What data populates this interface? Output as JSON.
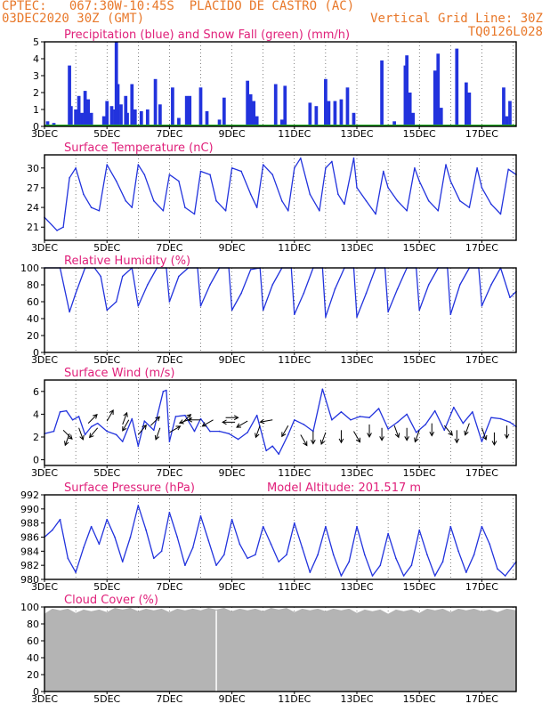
{
  "header": {
    "line1": "CPTEC:   067:30W-10:45S  PLACIDO DE CASTRO (AC)",
    "line2": "03DEC2020 30Z (GMT)",
    "vgrid": "Vertical Grid Line: 30Z",
    "code": "TQ0126L028"
  },
  "colors": {
    "header": "#e8782a",
    "title": "#e0207a",
    "line": "#2233dd",
    "snow": "#22aa22",
    "cloud": "#b4b4b4",
    "arrow": "#000000"
  },
  "x_ticks": [
    "3DEC",
    "5DEC",
    "7DEC",
    "9DEC",
    "11DEC",
    "13DEC",
    "15DEC",
    "17DEC"
  ],
  "x_range_days": [
    3,
    18.1
  ],
  "chart_data": [
    {
      "id": "precip",
      "type": "bar",
      "title": "Precipitation (blue) and Snow Fall (green) (mm/h)",
      "ylim": [
        0,
        5
      ],
      "yticks": [
        0,
        1,
        2,
        3,
        4,
        5
      ],
      "series": [
        {
          "name": "Precipitation",
          "x": [
            3.1,
            3.3,
            3.8,
            3.85,
            4.0,
            4.1,
            4.2,
            4.3,
            4.4,
            4.5,
            4.9,
            5.0,
            5.15,
            5.25,
            5.3,
            5.35,
            5.45,
            5.6,
            5.65,
            5.8,
            5.9,
            6.1,
            6.3,
            6.55,
            6.7,
            7.1,
            7.3,
            7.55,
            7.6,
            7.65,
            8.0,
            8.2,
            8.6,
            8.75,
            9.5,
            9.6,
            9.7,
            9.8,
            10.4,
            10.6,
            10.7,
            11.5,
            11.7,
            12.0,
            12.1,
            12.3,
            12.5,
            12.7,
            12.9,
            13.8,
            14.2,
            14.55,
            14.6,
            14.7,
            14.8,
            15.5,
            15.6,
            15.7,
            16.2,
            16.5,
            16.6,
            17.7,
            17.8,
            17.9
          ],
          "values": [
            0.3,
            0.2,
            3.6,
            1.2,
            1.0,
            1.8,
            0.8,
            2.1,
            1.6,
            0.8,
            0.6,
            1.5,
            1.2,
            1.0,
            5.0,
            2.5,
            1.3,
            1.8,
            0.8,
            2.5,
            1.0,
            0.9,
            1.0,
            2.8,
            1.3,
            2.3,
            0.5,
            1.8,
            1.4,
            1.8,
            2.3,
            0.9,
            0.4,
            1.7,
            2.7,
            1.9,
            1.5,
            0.6,
            2.5,
            0.4,
            2.4,
            1.4,
            1.2,
            2.8,
            1.5,
            1.5,
            1.6,
            2.3,
            0.8,
            3.9,
            0.3,
            3.6,
            4.2,
            2.0,
            0.8,
            3.3,
            4.3,
            1.1,
            4.6,
            2.6,
            2.0,
            2.3,
            0.6,
            1.5
          ]
        },
        {
          "name": "Snow Fall",
          "x": [],
          "values": []
        }
      ]
    },
    {
      "id": "temp",
      "type": "line",
      "title": "Surface Temperature (nC)",
      "ylim": [
        19,
        32
      ],
      "yticks": [
        21,
        24,
        27,
        30
      ],
      "x": [
        3.0,
        3.4,
        3.6,
        3.8,
        4.0,
        4.25,
        4.5,
        4.75,
        5.0,
        5.3,
        5.6,
        5.8,
        6.0,
        6.2,
        6.5,
        6.8,
        7.0,
        7.3,
        7.5,
        7.8,
        8.0,
        8.3,
        8.5,
        8.8,
        9.0,
        9.3,
        9.6,
        9.8,
        10.0,
        10.3,
        10.6,
        10.8,
        11.0,
        11.2,
        11.5,
        11.8,
        12.0,
        12.2,
        12.4,
        12.6,
        12.9,
        13.0,
        13.3,
        13.6,
        13.85,
        14.0,
        14.3,
        14.6,
        14.85,
        15.0,
        15.3,
        15.6,
        15.85,
        16.0,
        16.3,
        16.6,
        16.85,
        17.0,
        17.3,
        17.6,
        17.85,
        18.1
      ],
      "values": [
        22.5,
        20.5,
        21.0,
        28.5,
        30.0,
        26.0,
        24.0,
        23.5,
        30.5,
        28.0,
        25.0,
        24.0,
        30.5,
        29.0,
        25.0,
        23.5,
        29.0,
        28.0,
        24.0,
        23.0,
        29.5,
        29.0,
        25.0,
        23.5,
        30.0,
        29.5,
        26.0,
        24.0,
        30.5,
        29.0,
        25.0,
        23.5,
        30.0,
        31.5,
        26.0,
        23.5,
        30.0,
        31.0,
        26.0,
        24.5,
        31.5,
        27.0,
        25.0,
        23.0,
        29.5,
        27.0,
        25.0,
        23.5,
        30.0,
        28.0,
        25.0,
        23.5,
        30.5,
        28.0,
        25.0,
        24.0,
        30.0,
        27.0,
        24.5,
        23.0,
        29.8,
        29.0
      ]
    },
    {
      "id": "rh",
      "type": "line",
      "title": "Relative Humidity (%)",
      "ylim": [
        0,
        100
      ],
      "yticks": [
        0,
        20,
        40,
        60,
        80,
        100
      ],
      "x": [
        3.0,
        3.5,
        3.8,
        4.0,
        4.3,
        4.6,
        4.8,
        5.0,
        5.3,
        5.5,
        5.8,
        6.0,
        6.3,
        6.6,
        6.9,
        7.0,
        7.3,
        7.6,
        7.9,
        8.0,
        8.3,
        8.6,
        8.9,
        9.0,
        9.3,
        9.6,
        9.9,
        10.0,
        10.3,
        10.6,
        10.9,
        11.0,
        11.3,
        11.6,
        11.9,
        12.0,
        12.3,
        12.6,
        12.9,
        13.0,
        13.3,
        13.6,
        13.9,
        14.0,
        14.3,
        14.6,
        14.9,
        15.0,
        15.3,
        15.6,
        15.9,
        16.0,
        16.3,
        16.6,
        16.9,
        17.0,
        17.3,
        17.6,
        17.9,
        18.1
      ],
      "values": [
        100,
        100,
        48,
        70,
        100,
        100,
        90,
        50,
        60,
        90,
        100,
        55,
        80,
        100,
        100,
        60,
        90,
        100,
        100,
        55,
        80,
        100,
        100,
        50,
        70,
        98,
        100,
        50,
        80,
        100,
        100,
        45,
        70,
        100,
        100,
        42,
        75,
        100,
        100,
        42,
        70,
        100,
        100,
        48,
        75,
        100,
        100,
        50,
        80,
        100,
        100,
        45,
        80,
        100,
        100,
        55,
        80,
        100,
        65,
        72
      ]
    },
    {
      "id": "wind",
      "type": "line",
      "title": "Surface Wind (m/s)",
      "ylim": [
        -0.5,
        7
      ],
      "yticks": [
        0,
        2,
        4,
        6
      ],
      "x": [
        3.0,
        3.3,
        3.5,
        3.7,
        3.9,
        4.1,
        4.3,
        4.5,
        4.7,
        5.0,
        5.3,
        5.5,
        5.8,
        6.0,
        6.2,
        6.5,
        6.8,
        6.9,
        7.0,
        7.2,
        7.5,
        7.8,
        8.0,
        8.3,
        8.6,
        8.9,
        9.2,
        9.5,
        9.8,
        10.1,
        10.3,
        10.5,
        10.8,
        11.0,
        11.3,
        11.6,
        11.9,
        12.2,
        12.5,
        12.8,
        13.1,
        13.4,
        13.7,
        14.0,
        14.3,
        14.6,
        14.9,
        15.2,
        15.5,
        15.8,
        16.1,
        16.4,
        16.7,
        17.0,
        17.3,
        17.6,
        17.9,
        18.1
      ],
      "values": [
        2.3,
        2.5,
        4.2,
        4.3,
        3.5,
        3.8,
        2.2,
        2.9,
        3.2,
        2.5,
        2.2,
        1.6,
        3.6,
        1.2,
        3.4,
        2.6,
        6.0,
        6.1,
        1.6,
        3.8,
        3.9,
        2.5,
        3.6,
        2.5,
        2.5,
        2.3,
        1.8,
        2.4,
        3.9,
        0.8,
        1.2,
        0.5,
        2.2,
        3.5,
        3.1,
        2.5,
        6.2,
        3.5,
        4.2,
        3.5,
        3.8,
        3.7,
        4.5,
        2.7,
        3.3,
        4.0,
        2.4,
        3.1,
        4.3,
        2.6,
        4.6,
        3.2,
        4.2,
        1.6,
        3.7,
        3.6,
        3.3,
        2.9
      ],
      "arrows": [
        {
          "x": 3.6,
          "v": 2.6,
          "dir": 135
        },
        {
          "x": 3.8,
          "v": 2.3,
          "dir": 200
        },
        {
          "x": 4.1,
          "v": 2.8,
          "dir": 160
        },
        {
          "x": 4.4,
          "v": 3.2,
          "dir": 45
        },
        {
          "x": 4.7,
          "v": 2.8,
          "dir": 220
        },
        {
          "x": 5.0,
          "v": 3.4,
          "dir": 30
        },
        {
          "x": 5.5,
          "v": 3.1,
          "dir": 20
        },
        {
          "x": 5.7,
          "v": 3.5,
          "dir": 210
        },
        {
          "x": 6.0,
          "v": 2.2,
          "dir": 40
        },
        {
          "x": 6.4,
          "v": 3.0,
          "dir": 45
        },
        {
          "x": 6.7,
          "v": 2.8,
          "dir": 200
        },
        {
          "x": 7.0,
          "v": 2.4,
          "dir": 60
        },
        {
          "x": 7.4,
          "v": 3.2,
          "dir": 45
        },
        {
          "x": 7.7,
          "v": 3.6,
          "dir": 250
        },
        {
          "x": 8.0,
          "v": 3.5,
          "dir": 270
        },
        {
          "x": 8.4,
          "v": 3.5,
          "dir": 240
        },
        {
          "x": 8.8,
          "v": 3.7,
          "dir": 90
        },
        {
          "x": 9.1,
          "v": 3.3,
          "dir": 270
        },
        {
          "x": 9.5,
          "v": 3.4,
          "dir": 240
        },
        {
          "x": 9.9,
          "v": 3.0,
          "dir": 200
        },
        {
          "x": 10.3,
          "v": 3.5,
          "dir": 260
        },
        {
          "x": 10.8,
          "v": 3.0,
          "dir": 210
        },
        {
          "x": 11.2,
          "v": 2.2,
          "dir": 150
        },
        {
          "x": 11.6,
          "v": 2.5,
          "dir": 180
        },
        {
          "x": 12.0,
          "v": 2.4,
          "dir": 200
        },
        {
          "x": 12.5,
          "v": 2.6,
          "dir": 180
        },
        {
          "x": 12.9,
          "v": 2.5,
          "dir": 150
        },
        {
          "x": 13.4,
          "v": 3.1,
          "dir": 180
        },
        {
          "x": 13.8,
          "v": 2.8,
          "dir": 180
        },
        {
          "x": 14.2,
          "v": 3.0,
          "dir": 160
        },
        {
          "x": 14.6,
          "v": 2.8,
          "dir": 180
        },
        {
          "x": 15.0,
          "v": 2.6,
          "dir": 200
        },
        {
          "x": 15.4,
          "v": 3.2,
          "dir": 180
        },
        {
          "x": 15.8,
          "v": 3.0,
          "dir": 140
        },
        {
          "x": 16.2,
          "v": 2.6,
          "dir": 180
        },
        {
          "x": 16.6,
          "v": 3.2,
          "dir": 200
        },
        {
          "x": 17.0,
          "v": 2.8,
          "dir": 160
        },
        {
          "x": 17.4,
          "v": 2.4,
          "dir": 180
        },
        {
          "x": 17.8,
          "v": 3.0,
          "dir": 180
        }
      ]
    },
    {
      "id": "pres",
      "type": "line",
      "title": "Surface Pressure (hPa)",
      "subtitle": "Model Altitude: 201.517 m",
      "ylim": [
        980,
        992
      ],
      "yticks": [
        980,
        982,
        984,
        986,
        988,
        990,
        992
      ],
      "x": [
        3.0,
        3.25,
        3.5,
        3.75,
        4.0,
        4.25,
        4.5,
        4.75,
        5.0,
        5.25,
        5.5,
        5.75,
        6.0,
        6.25,
        6.5,
        6.75,
        7.0,
        7.25,
        7.5,
        7.75,
        8.0,
        8.25,
        8.5,
        8.75,
        9.0,
        9.25,
        9.5,
        9.75,
        10.0,
        10.25,
        10.5,
        10.75,
        11.0,
        11.25,
        11.5,
        11.75,
        12.0,
        12.25,
        12.5,
        12.75,
        13.0,
        13.25,
        13.5,
        13.75,
        14.0,
        14.25,
        14.5,
        14.75,
        15.0,
        15.25,
        15.5,
        15.75,
        16.0,
        16.25,
        16.5,
        16.75,
        17.0,
        17.25,
        17.5,
        17.75,
        18.1
      ],
      "values": [
        986,
        987,
        988.5,
        983,
        981,
        984.5,
        987.5,
        985,
        988.5,
        986,
        982.5,
        986,
        990.5,
        987,
        983,
        984,
        989.5,
        986,
        982,
        984.5,
        989,
        985.5,
        982,
        983.5,
        988.5,
        985,
        983,
        983.5,
        987.5,
        985,
        982.5,
        983.5,
        988,
        984.5,
        981,
        983.5,
        987.5,
        983.5,
        980.5,
        982.5,
        987.5,
        983.5,
        980.5,
        982,
        986.5,
        983,
        980.5,
        982,
        987,
        983.5,
        980.5,
        982.5,
        987.5,
        984,
        981,
        983.5,
        987.5,
        985,
        981.5,
        980.5,
        982.5
      ]
    },
    {
      "id": "cloud",
      "type": "area",
      "title": "Cloud Cover (%)",
      "ylim": [
        0,
        100
      ],
      "yticks": [
        0,
        20,
        40,
        60,
        80,
        100
      ],
      "x": [
        3.0,
        3.5,
        4.0,
        4.5,
        5.0,
        5.5,
        6.0,
        6.5,
        7.0,
        7.5,
        8.0,
        8.5,
        9.0,
        9.5,
        10.0,
        10.5,
        11.0,
        11.5,
        12.0,
        12.5,
        13.0,
        13.5,
        14.0,
        14.5,
        15.0,
        15.5,
        16.0,
        16.5,
        17.0,
        17.5,
        18.1
      ],
      "values": [
        92,
        96,
        93,
        95,
        94,
        97,
        95,
        96,
        94,
        96,
        96,
        97,
        95,
        96,
        95,
        97,
        94,
        96,
        95,
        96,
        93,
        95,
        92,
        95,
        93,
        96,
        94,
        96,
        95,
        94,
        96
      ]
    }
  ]
}
